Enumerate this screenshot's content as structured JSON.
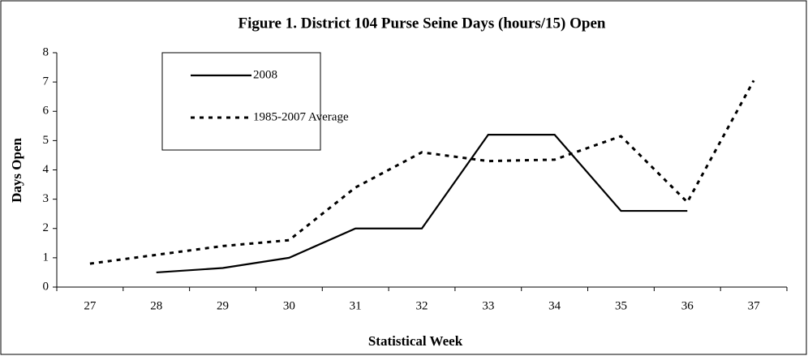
{
  "chart_data": {
    "type": "line",
    "title": "Figure 1.  District 104 Purse Seine Days (hours/15) Open",
    "x_label": "Statistical Week",
    "y_label": "Days Open",
    "categories": [
      "27",
      "28",
      "29",
      "30",
      "31",
      "32",
      "33",
      "34",
      "35",
      "36",
      "37"
    ],
    "series": [
      {
        "name": "2008",
        "color": "#000000",
        "line_style": "solid",
        "values": [
          null,
          0.5,
          0.65,
          1.0,
          2.0,
          2.0,
          5.2,
          5.2,
          2.6,
          2.6,
          null
        ]
      },
      {
        "name": "1985-2007 Average",
        "color": "#000000",
        "line_style": "dashed",
        "values": [
          0.8,
          1.1,
          1.4,
          1.6,
          3.4,
          4.6,
          4.3,
          4.35,
          5.15,
          2.9,
          7.05
        ]
      }
    ],
    "ylim": [
      0,
      8
    ],
    "yticks": [
      0,
      1,
      2,
      3,
      4,
      5,
      6,
      7,
      8
    ],
    "grid": false,
    "legend": "upper left"
  }
}
